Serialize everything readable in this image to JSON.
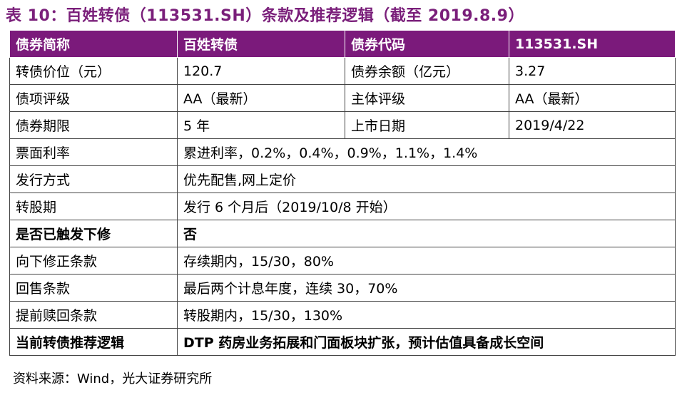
{
  "title": "表 10：百姓转债（113531.SH）条款及推荐逻辑（截至 2019.8.9）",
  "table": {
    "header": [
      "债券简称",
      "百姓转债",
      "债券代码",
      "113531.SH"
    ],
    "rows": [
      [
        "转债价位（元）",
        "120.7",
        "债券余额（亿元）",
        "3.27"
      ],
      [
        "债项评级",
        "AA（最新）",
        "主体评级",
        "AA（最新）"
      ],
      [
        "债券期限",
        "5 年",
        "上市日期",
        "2019/4/22"
      ],
      [
        "票面利率",
        "累进利率，0.2%，0.4%，0.9%，1.1%，1.4%"
      ],
      [
        "发行方式",
        "优先配售,网上定价"
      ],
      [
        "转股期",
        "发行 6 个月后（2019/10/8 开始）"
      ],
      [
        "是否已触发下修",
        "否"
      ],
      [
        "向下修正条款",
        "存续期内，15/30，80%"
      ],
      [
        "回售条款",
        "最后两个计息年度，连续 30，70%"
      ],
      [
        "提前赎回条款",
        "转股期内，15/30，130%"
      ],
      [
        "当前转债推荐逻辑",
        "DTP 药房业务拓展和门面板块扩张，预计估值具备成长空间"
      ]
    ]
  },
  "source": "资料来源：Wind，光大证券研究所"
}
